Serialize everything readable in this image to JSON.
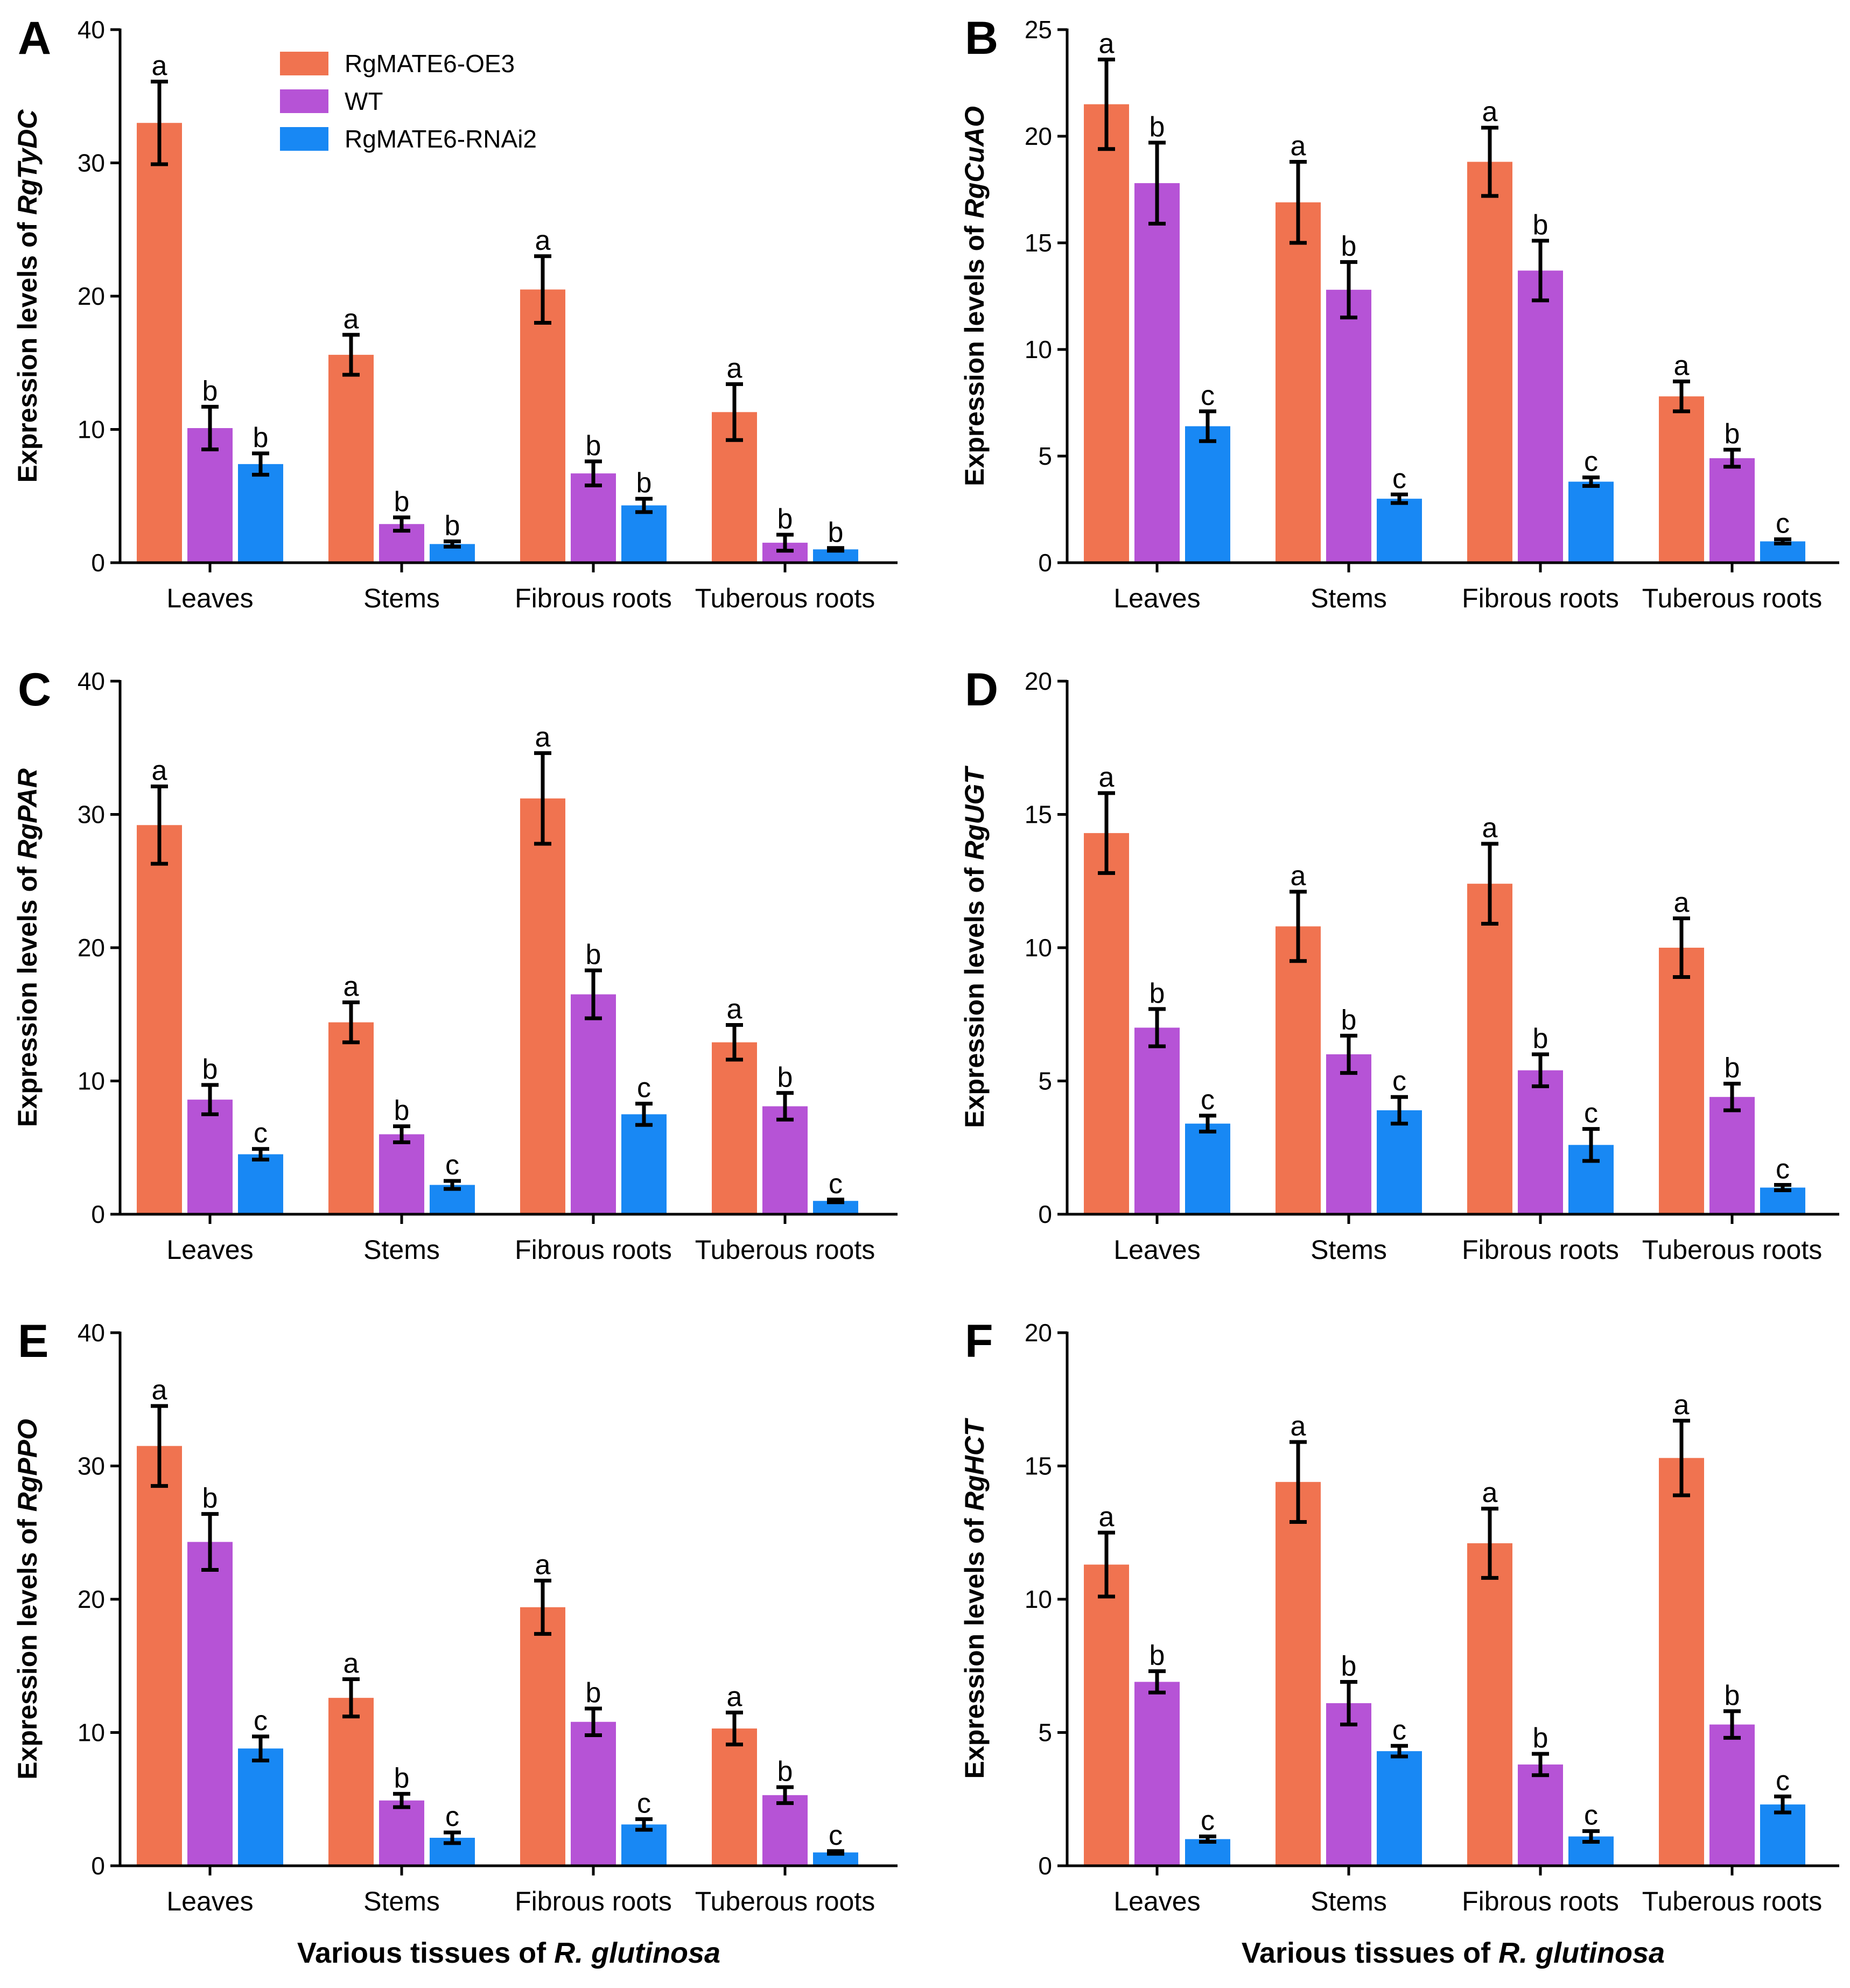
{
  "legend": [
    {
      "name": "RgMATE6-OE3",
      "color": "#F07350"
    },
    {
      "name": "WT",
      "color": "#B653D6"
    },
    {
      "name": "RgMATE6-RNAi2",
      "color": "#1888F4"
    }
  ],
  "x_title": {
    "prefix": "Various tissues of ",
    "italic": "R. glutinosa"
  },
  "chart_data": [
    {
      "type": "bar",
      "panel": "A",
      "title": "",
      "ylabel_prefix": "Expression levels of ",
      "ylabel_gene": "RgTyDC",
      "categories": [
        "Leaves",
        "Stems",
        "Fibrous roots",
        "Tuberous roots"
      ],
      "ylim": [
        0,
        40
      ],
      "yticks": [
        0,
        10,
        20,
        30,
        40
      ],
      "series": [
        {
          "name": "RgMATE6-OE3",
          "values": [
            33.0,
            15.6,
            20.5,
            11.3
          ],
          "errors": [
            3.1,
            1.5,
            2.5,
            2.1
          ],
          "letters": [
            "a",
            "a",
            "a",
            "a"
          ]
        },
        {
          "name": "WT",
          "values": [
            10.1,
            2.9,
            6.7,
            1.5
          ],
          "errors": [
            1.6,
            0.5,
            0.9,
            0.6
          ],
          "letters": [
            "b",
            "b",
            "b",
            "b"
          ]
        },
        {
          "name": "RgMATE6-RNAi2",
          "values": [
            7.4,
            1.4,
            4.3,
            1.0
          ],
          "errors": [
            0.8,
            0.2,
            0.5,
            0.1
          ],
          "letters": [
            "b",
            "b",
            "b",
            "b"
          ]
        }
      ]
    },
    {
      "type": "bar",
      "panel": "B",
      "title": "",
      "ylabel_prefix": "Expression levels of ",
      "ylabel_gene": "RgCuAO",
      "categories": [
        "Leaves",
        "Stems",
        "Fibrous roots",
        "Tuberous roots"
      ],
      "ylim": [
        0,
        25
      ],
      "yticks": [
        0,
        5,
        10,
        15,
        20,
        25
      ],
      "series": [
        {
          "name": "RgMATE6-OE3",
          "values": [
            21.5,
            16.9,
            18.8,
            7.8
          ],
          "errors": [
            2.1,
            1.9,
            1.6,
            0.7
          ],
          "letters": [
            "a",
            "a",
            "a",
            "a"
          ]
        },
        {
          "name": "WT",
          "values": [
            17.8,
            12.8,
            13.7,
            4.9
          ],
          "errors": [
            1.9,
            1.3,
            1.4,
            0.4
          ],
          "letters": [
            "b",
            "b",
            "b",
            "b"
          ]
        },
        {
          "name": "RgMATE6-RNAi2",
          "values": [
            6.4,
            3.0,
            3.8,
            1.0
          ],
          "errors": [
            0.7,
            0.2,
            0.2,
            0.1
          ],
          "letters": [
            "c",
            "c",
            "c",
            "c"
          ]
        }
      ]
    },
    {
      "type": "bar",
      "panel": "C",
      "title": "",
      "ylabel_prefix": "Expression levels of ",
      "ylabel_gene": "RgPAR",
      "categories": [
        "Leaves",
        "Stems",
        "Fibrous roots",
        "Tuberous roots"
      ],
      "ylim": [
        0,
        40
      ],
      "yticks": [
        0,
        10,
        20,
        30,
        40
      ],
      "series": [
        {
          "name": "RgMATE6-OE3",
          "values": [
            29.2,
            14.4,
            31.2,
            12.9
          ],
          "errors": [
            2.9,
            1.5,
            3.4,
            1.3
          ],
          "letters": [
            "a",
            "a",
            "a",
            "a"
          ]
        },
        {
          "name": "WT",
          "values": [
            8.6,
            6.0,
            16.5,
            8.1
          ],
          "errors": [
            1.1,
            0.6,
            1.8,
            1.0
          ],
          "letters": [
            "b",
            "b",
            "b",
            "b"
          ]
        },
        {
          "name": "RgMATE6-RNAi2",
          "values": [
            4.5,
            2.2,
            7.5,
            1.0
          ],
          "errors": [
            0.4,
            0.3,
            0.8,
            0.1
          ],
          "letters": [
            "c",
            "c",
            "c",
            "c"
          ]
        }
      ]
    },
    {
      "type": "bar",
      "panel": "D",
      "title": "",
      "ylabel_prefix": "Expression levels of ",
      "ylabel_gene": "RgUGT",
      "categories": [
        "Leaves",
        "Stems",
        "Fibrous roots",
        "Tuberous roots"
      ],
      "ylim": [
        0,
        20
      ],
      "yticks": [
        0,
        5,
        10,
        15,
        20
      ],
      "series": [
        {
          "name": "RgMATE6-OE3",
          "values": [
            14.3,
            10.8,
            12.4,
            10.0
          ],
          "errors": [
            1.5,
            1.3,
            1.5,
            1.1
          ],
          "letters": [
            "a",
            "a",
            "a",
            "a"
          ]
        },
        {
          "name": "WT",
          "values": [
            7.0,
            6.0,
            5.4,
            4.4
          ],
          "errors": [
            0.7,
            0.7,
            0.6,
            0.5
          ],
          "letters": [
            "b",
            "b",
            "b",
            "b"
          ]
        },
        {
          "name": "RgMATE6-RNAi2",
          "values": [
            3.4,
            3.9,
            2.6,
            1.0
          ],
          "errors": [
            0.3,
            0.5,
            0.6,
            0.1
          ],
          "letters": [
            "c",
            "c",
            "c",
            "c"
          ]
        }
      ]
    },
    {
      "type": "bar",
      "panel": "E",
      "title": "",
      "ylabel_prefix": "Expression levels of ",
      "ylabel_gene": "RgPPO",
      "categories": [
        "Leaves",
        "Stems",
        "Fibrous roots",
        "Tuberous roots"
      ],
      "ylim": [
        0,
        40
      ],
      "yticks": [
        0,
        10,
        20,
        30,
        40
      ],
      "series": [
        {
          "name": "RgMATE6-OE3",
          "values": [
            31.5,
            12.6,
            19.4,
            10.3
          ],
          "errors": [
            3.0,
            1.4,
            2.0,
            1.2
          ],
          "letters": [
            "a",
            "a",
            "a",
            "a"
          ]
        },
        {
          "name": "WT",
          "values": [
            24.3,
            4.9,
            10.8,
            5.3
          ],
          "errors": [
            2.1,
            0.5,
            1.0,
            0.6
          ],
          "letters": [
            "b",
            "b",
            "b",
            "b"
          ]
        },
        {
          "name": "RgMATE6-RNAi2",
          "values": [
            8.8,
            2.1,
            3.1,
            1.0
          ],
          "errors": [
            0.9,
            0.4,
            0.4,
            0.1
          ],
          "letters": [
            "c",
            "c",
            "c",
            "c"
          ]
        }
      ]
    },
    {
      "type": "bar",
      "panel": "F",
      "title": "",
      "ylabel_prefix": "Expression levels of ",
      "ylabel_gene": "RgHCT",
      "categories": [
        "Leaves",
        "Stems",
        "Fibrous roots",
        "Tuberous roots"
      ],
      "ylim": [
        0,
        20
      ],
      "yticks": [
        0,
        5,
        10,
        15,
        20
      ],
      "series": [
        {
          "name": "RgMATE6-OE3",
          "values": [
            11.3,
            14.4,
            12.1,
            15.3
          ],
          "errors": [
            1.2,
            1.5,
            1.3,
            1.4
          ],
          "letters": [
            "a",
            "a",
            "a",
            "a"
          ]
        },
        {
          "name": "WT",
          "values": [
            6.9,
            6.1,
            3.8,
            5.3
          ],
          "errors": [
            0.4,
            0.8,
            0.4,
            0.5
          ],
          "letters": [
            "b",
            "b",
            "b",
            "b"
          ]
        },
        {
          "name": "RgMATE6-RNAi2",
          "values": [
            1.0,
            4.3,
            1.1,
            2.3
          ],
          "errors": [
            0.1,
            0.2,
            0.2,
            0.3
          ],
          "letters": [
            "c",
            "c",
            "c",
            "c"
          ]
        }
      ]
    }
  ]
}
